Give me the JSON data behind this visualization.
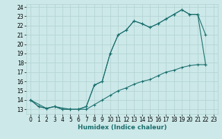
{
  "xlabel": "Humidex (Indice chaleur)",
  "xlim": [
    -0.5,
    23.5
  ],
  "ylim": [
    12.5,
    24.3
  ],
  "yticks": [
    13,
    14,
    15,
    16,
    17,
    18,
    19,
    20,
    21,
    22,
    23,
    24
  ],
  "xticks": [
    0,
    1,
    2,
    3,
    4,
    5,
    6,
    7,
    8,
    9,
    10,
    11,
    12,
    13,
    14,
    15,
    16,
    17,
    18,
    19,
    20,
    21,
    22,
    23
  ],
  "bg_color": "#cce8e8",
  "grid_color": "#b0d0d0",
  "line_color": "#1a6e6e",
  "line1_x": [
    0,
    1,
    2,
    3,
    4,
    5,
    6,
    7,
    8,
    9,
    10,
    11,
    12,
    13,
    14,
    15,
    16,
    17,
    18,
    19,
    20,
    21,
    22
  ],
  "line1_y": [
    14.0,
    13.3,
    13.1,
    13.3,
    13.0,
    13.0,
    13.0,
    13.3,
    15.6,
    16.0,
    19.0,
    21.0,
    21.5,
    22.5,
    22.2,
    21.8,
    22.2,
    22.7,
    23.2,
    23.7,
    23.2,
    23.2,
    21.0
  ],
  "line2_x": [
    0,
    1,
    2,
    3,
    4,
    5,
    6,
    7,
    8,
    9,
    10,
    11,
    12,
    13,
    14,
    15,
    16,
    17,
    18,
    19,
    20,
    21,
    22
  ],
  "line2_y": [
    14.0,
    13.3,
    13.1,
    13.3,
    13.0,
    13.0,
    13.0,
    13.0,
    13.5,
    14.0,
    14.5,
    15.0,
    15.3,
    15.7,
    16.0,
    16.2,
    16.6,
    17.0,
    17.2,
    17.5,
    17.7,
    17.8,
    17.8
  ],
  "line3_x": [
    0,
    2,
    3,
    5,
    6,
    7,
    8,
    9,
    10,
    11,
    12,
    13,
    14,
    15,
    16,
    17,
    18,
    19,
    20,
    21,
    22
  ],
  "line3_y": [
    14.0,
    13.1,
    13.3,
    13.0,
    13.0,
    13.3,
    15.6,
    16.0,
    19.0,
    21.0,
    21.5,
    22.5,
    22.2,
    21.8,
    22.2,
    22.7,
    23.2,
    23.7,
    23.2,
    23.2,
    17.8
  ],
  "figsize": [
    3.2,
    2.0
  ],
  "dpi": 100,
  "marker": "+",
  "markersize": 3,
  "linewidth": 0.8,
  "tick_fontsize": 5.5,
  "xlabel_fontsize": 6.5
}
